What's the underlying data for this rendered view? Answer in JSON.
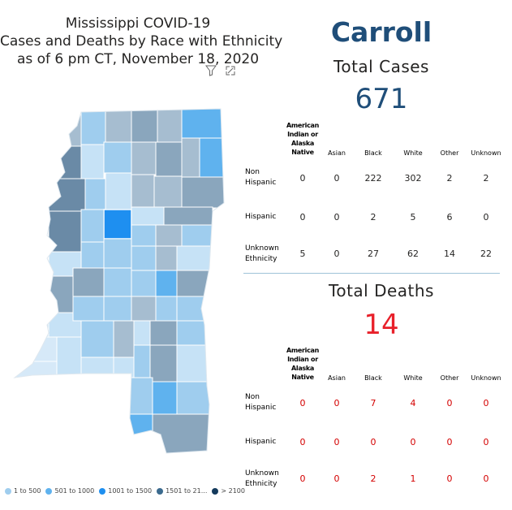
{
  "title": {
    "line1": "Mississippi COVID-19",
    "line2": "Cases and Deaths by Race with Ethnicity",
    "line3": "as of 6 pm CT, November 18, 2020"
  },
  "legend": [
    {
      "label": "1 to 500",
      "color": "#9fcdee"
    },
    {
      "label": "501 to 1000",
      "color": "#5fb2ee"
    },
    {
      "label": "1001 to 1500",
      "color": "#1e8ff0"
    },
    {
      "label": "1501 to 21...",
      "color": "#3b6a8e"
    },
    {
      "label": "> 2100",
      "color": "#143a5c"
    }
  ],
  "county": "Carroll",
  "cases": {
    "label": "Total Cases",
    "total": "671",
    "total_color": "#1f4e79",
    "columns": [
      "American Indian or Alaska Native",
      "Asian",
      "Black",
      "White",
      "Other",
      "Unknown"
    ],
    "rows": [
      {
        "label": "Non Hispanic",
        "values": [
          "0",
          "0",
          "222",
          "302",
          "2",
          "2"
        ]
      },
      {
        "label": "Hispanic",
        "values": [
          "0",
          "0",
          "2",
          "5",
          "6",
          "0"
        ]
      },
      {
        "label": "Unknown Ethnicity",
        "values": [
          "5",
          "0",
          "27",
          "62",
          "14",
          "22"
        ]
      }
    ]
  },
  "deaths": {
    "label": "Total Deaths",
    "total": "14",
    "total_color": "#e8202a",
    "columns": [
      "American Indian or Alaska Native",
      "Asian",
      "Black",
      "White",
      "Other",
      "Unknown"
    ],
    "rows": [
      {
        "label": "Non Hispanic",
        "values": [
          "0",
          "0",
          "7",
          "4",
          "0",
          "0"
        ]
      },
      {
        "label": "Hispanic",
        "values": [
          "0",
          "0",
          "0",
          "0",
          "0",
          "0"
        ]
      },
      {
        "label": "Unknown Ethnicity",
        "values": [
          "0",
          "0",
          "2",
          "1",
          "0",
          "0"
        ]
      }
    ]
  }
}
